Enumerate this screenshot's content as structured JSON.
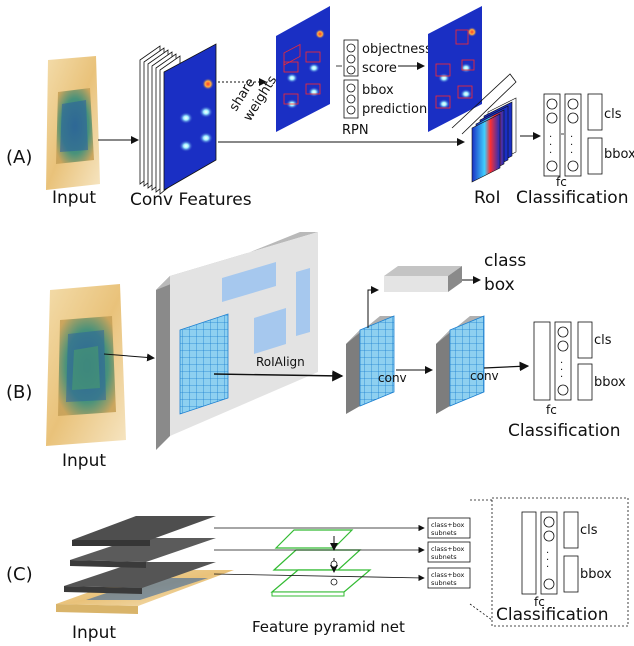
{
  "panel_a": {
    "tag": "(A)",
    "input_label": "Input",
    "conv_features_label": "Conv Features",
    "share_weights_line1": "share",
    "share_weights_line2": "weights",
    "objectness_line1": "objectness",
    "objectness_line2": "score",
    "bbox_line1": "bbox",
    "bbox_line2": "prediction",
    "rpn_label": "RPN",
    "roi_label": "RoI",
    "fc_label": "fc",
    "cls_label": "cls",
    "bbox_label": "bbox",
    "classification_label": "Classification"
  },
  "panel_b": {
    "tag": "(B)",
    "input_label": "Input",
    "roialign_label": "RoIAlign",
    "class_label": "class",
    "box_label": "box",
    "conv1_label": "conv",
    "conv2_label": "conv",
    "fc_label": "fc",
    "cls_label": "cls",
    "bbox_label": "bbox",
    "classification_label": "Classification"
  },
  "panel_c": {
    "tag": "(C)",
    "input_label": "Input",
    "fpn_label": "Feature pyramid net",
    "subnet_line1": "class+box",
    "subnet_line2": "subnets",
    "fc_label": "fc",
    "cls_label": "cls",
    "bbox_label": "bbox",
    "classification_label": "Classification"
  },
  "colors": {
    "heatmap_bg": "#1a2fc4",
    "feature_grid": "#8ed0f0",
    "grid_line": "#1b7fd0",
    "pyramid_green": "#33bb33",
    "dark_layer": "#555555",
    "gray_block": "#9a9a9a"
  }
}
